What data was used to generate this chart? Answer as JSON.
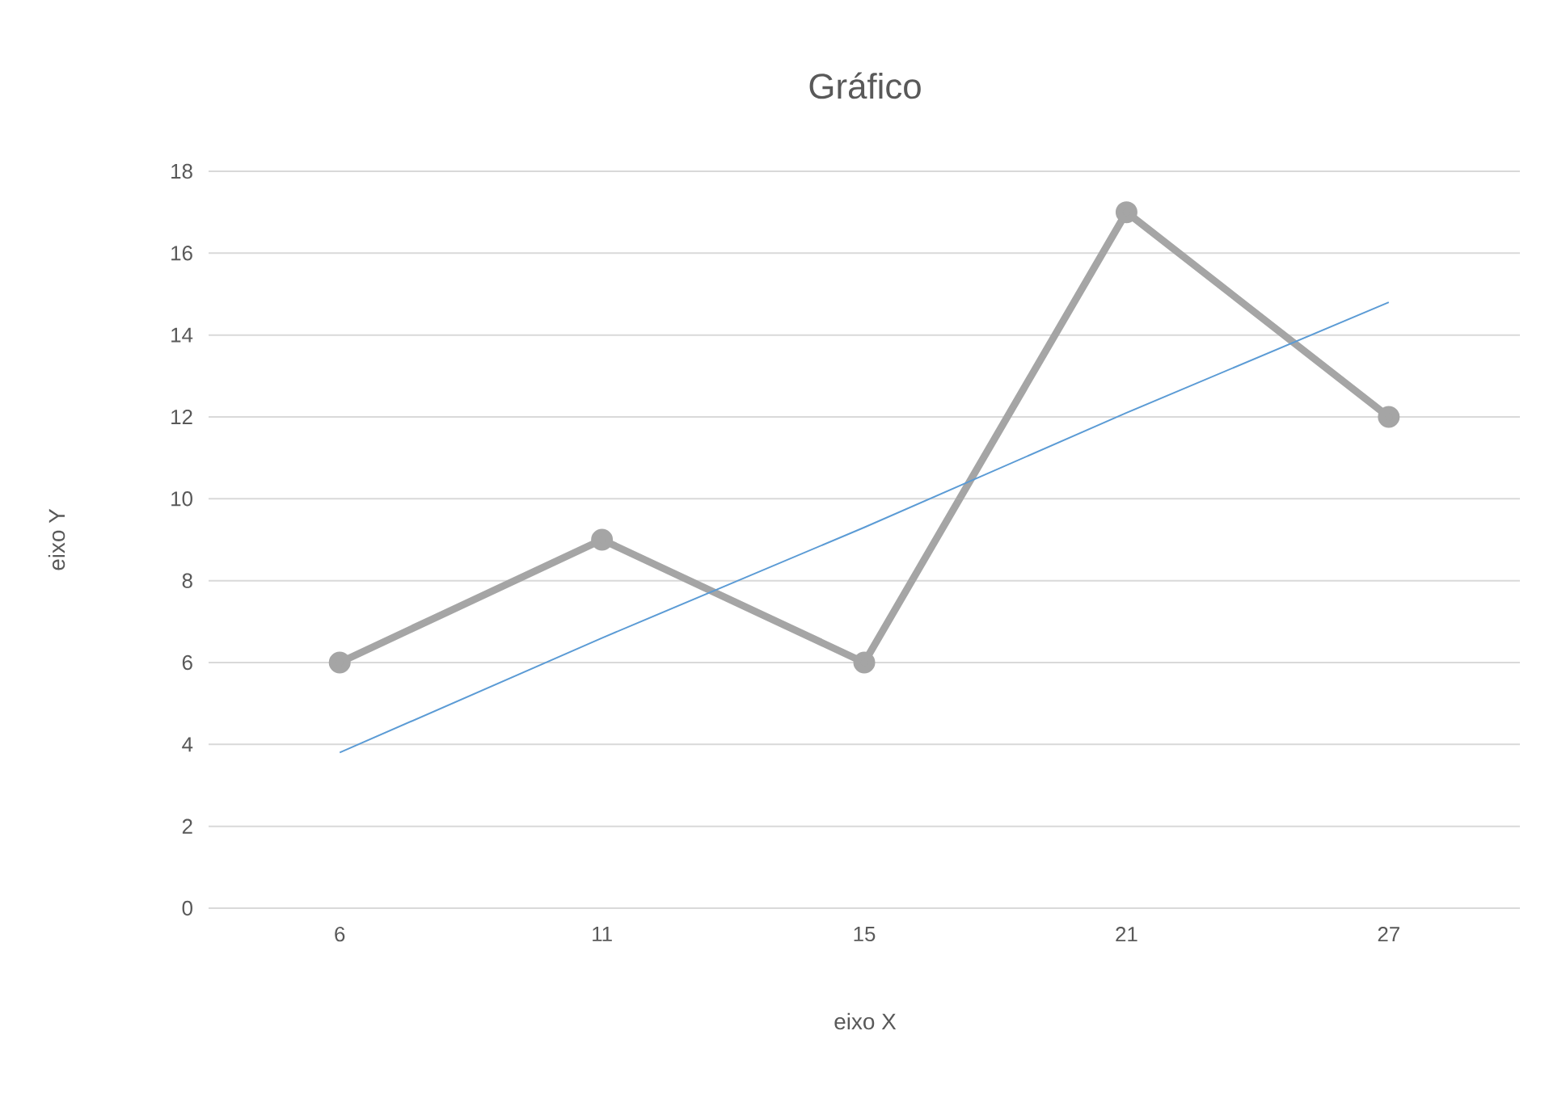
{
  "chart_data": {
    "type": "line",
    "title": "Gráfico",
    "xlabel": "eixo X",
    "ylabel": "eixo Y",
    "categories": [
      "6",
      "11",
      "15",
      "21",
      "27"
    ],
    "series": [
      {
        "color": "#a5a5a5",
        "values": [
          6,
          9,
          6,
          17,
          12
        ],
        "marker": "circle"
      },
      {
        "type": "line",
        "color": "#5b9bd5",
        "values": [
          3.8,
          6.6,
          9.3,
          12.1,
          14.8
        ],
        "marker": "none",
        "line_style": "solid"
      }
    ],
    "ylim": [
      0,
      18
    ],
    "yticks": [
      0,
      2,
      4,
      6,
      8,
      10,
      12,
      14,
      16,
      18
    ],
    "grid": "y"
  }
}
